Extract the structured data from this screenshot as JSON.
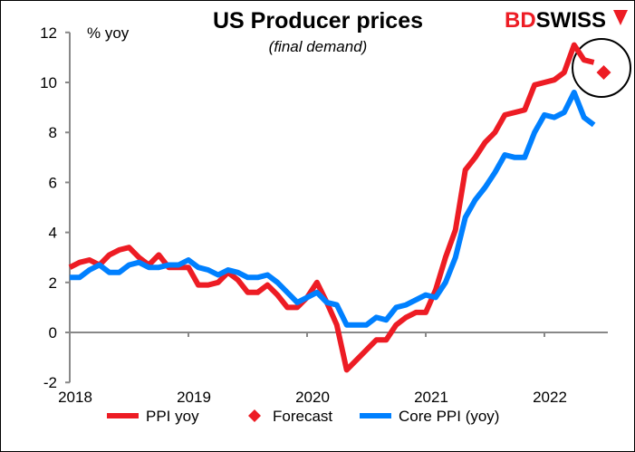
{
  "chart_data": {
    "type": "line",
    "title": "US Producer prices",
    "subtitle": "(final demand)",
    "ylabel": "% yoy",
    "logo": "BDSWISS",
    "ylim": [
      -2,
      12
    ],
    "yticks": [
      -2,
      0,
      2,
      4,
      6,
      8,
      10,
      12
    ],
    "xticks": [
      "2018",
      "2019",
      "2020",
      "2021",
      "2022"
    ],
    "x_start": "2018-01",
    "x_frequency": "monthly",
    "legend_position": "bottom",
    "grid": false,
    "series": [
      {
        "name": "PPI yoy",
        "color": "#ed1c24",
        "values": [
          2.6,
          2.8,
          2.9,
          2.7,
          3.1,
          3.3,
          3.4,
          3.0,
          2.7,
          3.1,
          2.6,
          2.6,
          2.6,
          1.9,
          1.9,
          2.0,
          2.4,
          2.1,
          1.6,
          1.6,
          1.9,
          1.5,
          1.0,
          1.0,
          1.4,
          2.0,
          1.2,
          0.3,
          -1.5,
          -1.1,
          -0.7,
          -0.3,
          -0.3,
          0.3,
          0.6,
          0.8,
          0.8,
          1.7,
          3.0,
          4.1,
          6.5,
          7.0,
          7.6,
          8.0,
          8.7,
          8.8,
          8.9,
          9.9,
          10.0,
          10.1,
          10.4,
          11.5,
          10.9,
          10.8
        ]
      },
      {
        "name": "Forecast",
        "color": "#ed1c24",
        "marker": "diamond",
        "x": "2022-06",
        "value": 10.4
      },
      {
        "name": "Core PPI (yoy)",
        "color": "#0080ff",
        "values": [
          2.2,
          2.2,
          2.5,
          2.7,
          2.4,
          2.4,
          2.7,
          2.8,
          2.6,
          2.6,
          2.7,
          2.7,
          2.9,
          2.6,
          2.5,
          2.3,
          2.5,
          2.4,
          2.2,
          2.2,
          2.3,
          2.0,
          1.6,
          1.2,
          1.4,
          1.6,
          1.2,
          1.1,
          0.3,
          0.3,
          0.3,
          0.6,
          0.5,
          1.0,
          1.1,
          1.3,
          1.5,
          1.4,
          2.0,
          3.0,
          4.6,
          5.3,
          5.8,
          6.4,
          7.1,
          7.0,
          7.0,
          8.0,
          8.7,
          8.6,
          8.8,
          9.6,
          8.6,
          8.3
        ]
      }
    ]
  }
}
